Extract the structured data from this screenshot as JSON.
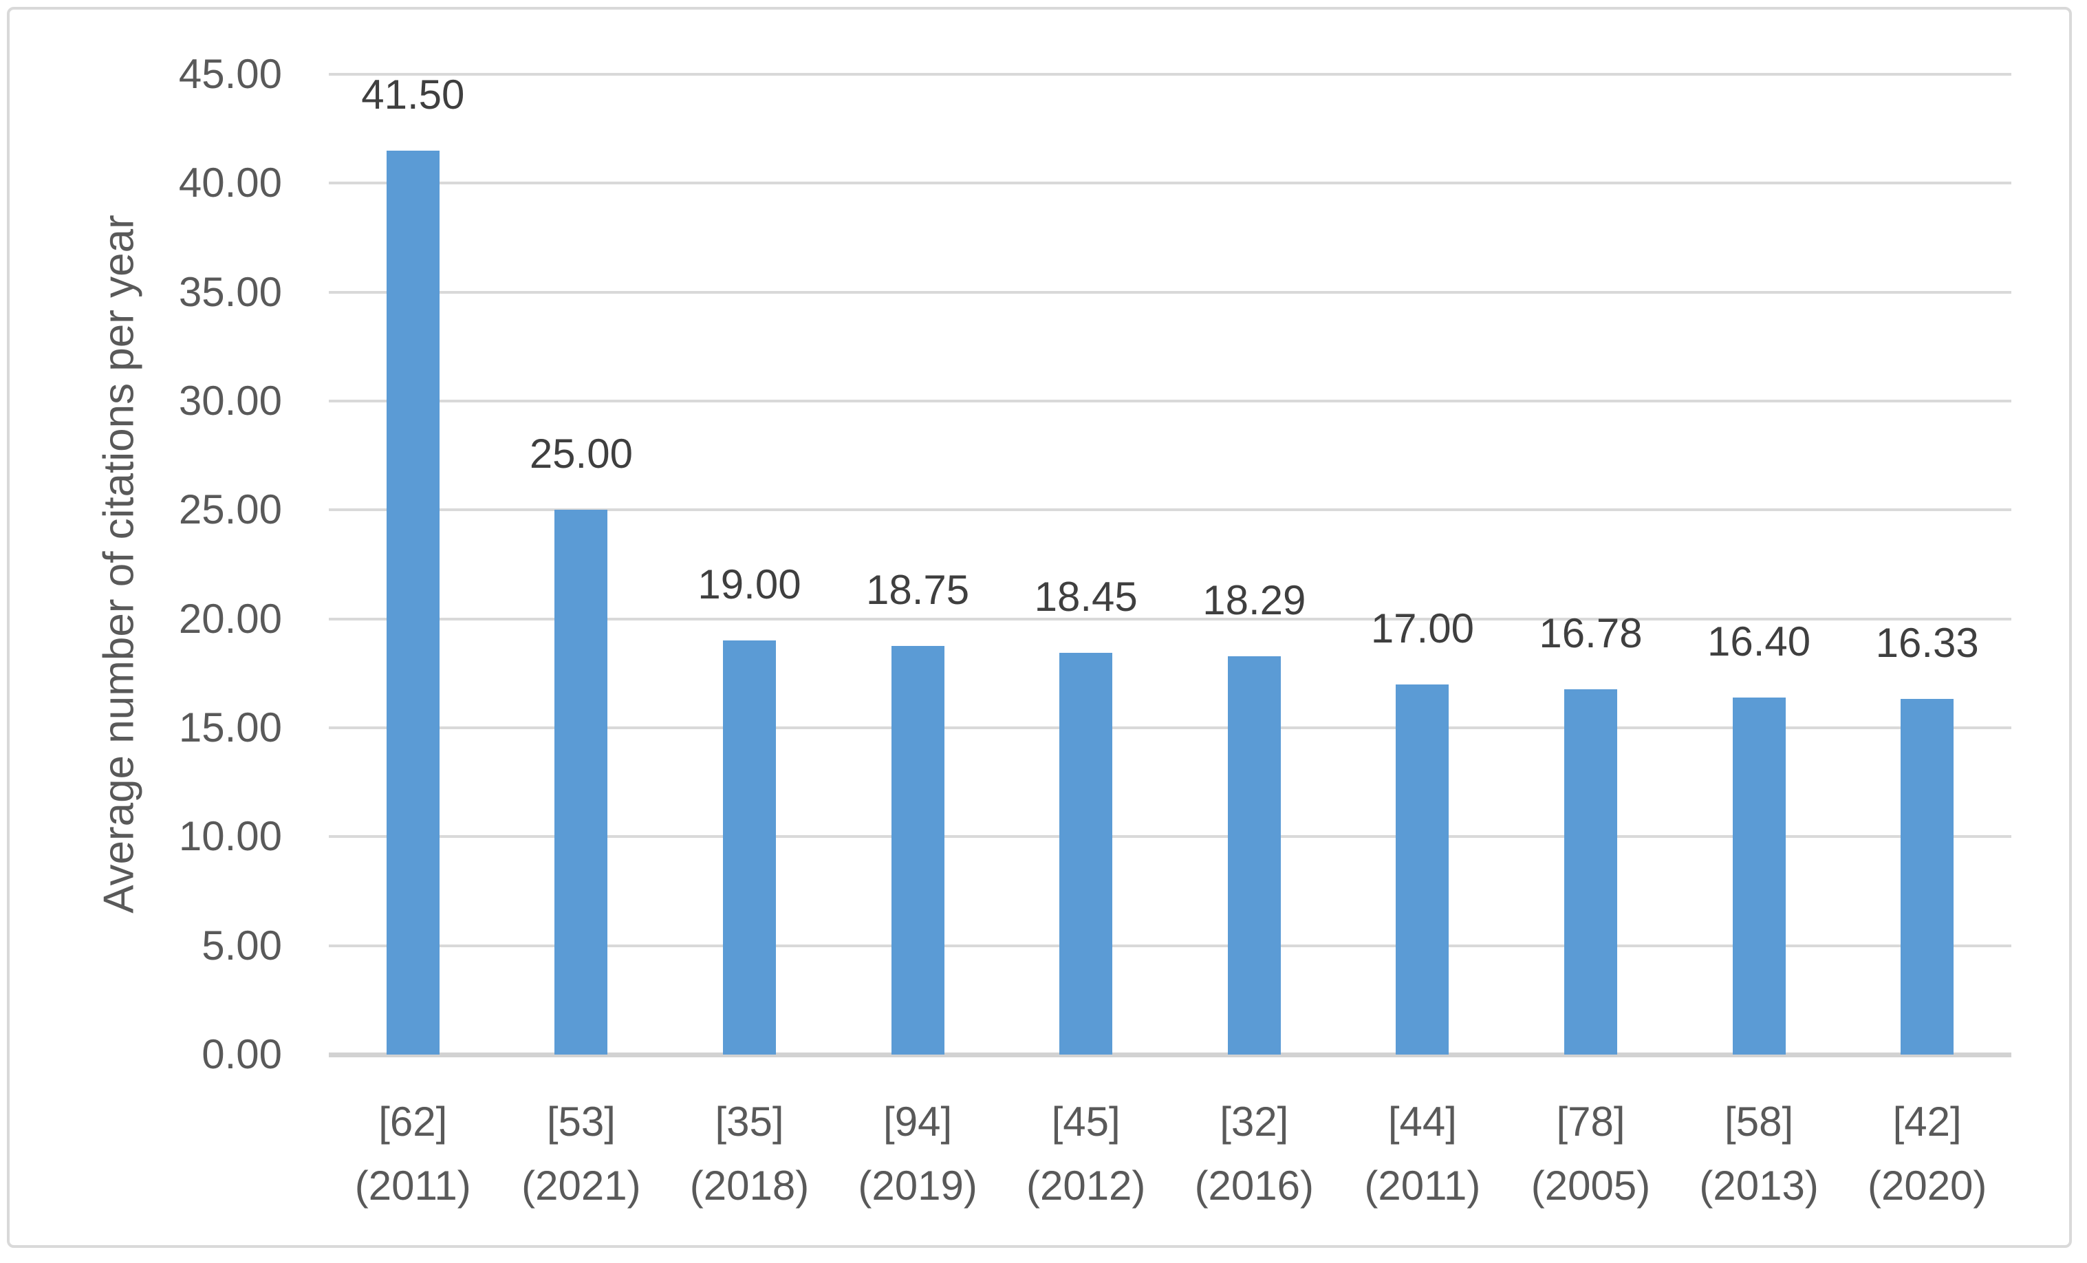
{
  "chart_data": {
    "type": "bar",
    "title": "",
    "y_axis_title": "Average number of citations per year",
    "x_axis_title": "",
    "categories": [
      "[62]\n(2011)",
      "[53]\n(2021)",
      "[35]\n(2018)",
      "[94]\n(2019)",
      "[45]\n(2012)",
      "[32]\n(2016)",
      "[44]\n(2011)",
      "[78]\n(2005)",
      "[58]\n(2013)",
      "[42]\n(2020)"
    ],
    "values": [
      41.5,
      25.0,
      19.0,
      18.75,
      18.45,
      18.29,
      17.0,
      16.78,
      16.4,
      16.33
    ],
    "data_labels": [
      "41.50",
      "25.00",
      "19.00",
      "18.75",
      "18.45",
      "18.29",
      "17.00",
      "16.78",
      "16.40",
      "16.33"
    ],
    "y_ticks": [
      "45.00",
      "40.00",
      "35.00",
      "30.00",
      "25.00",
      "20.00",
      "15.00",
      "10.00",
      "5.00",
      "0.00"
    ],
    "ylim": [
      0,
      45
    ],
    "grid": true,
    "legend": "none",
    "colors": {
      "bar": "#5B9BD5",
      "gridline": "#D9D9D9",
      "axis_line": "#D2D2D2",
      "axis_text": "#595959",
      "data_label": "#3F3F3F",
      "frame_border": "#D9D9D9"
    }
  }
}
